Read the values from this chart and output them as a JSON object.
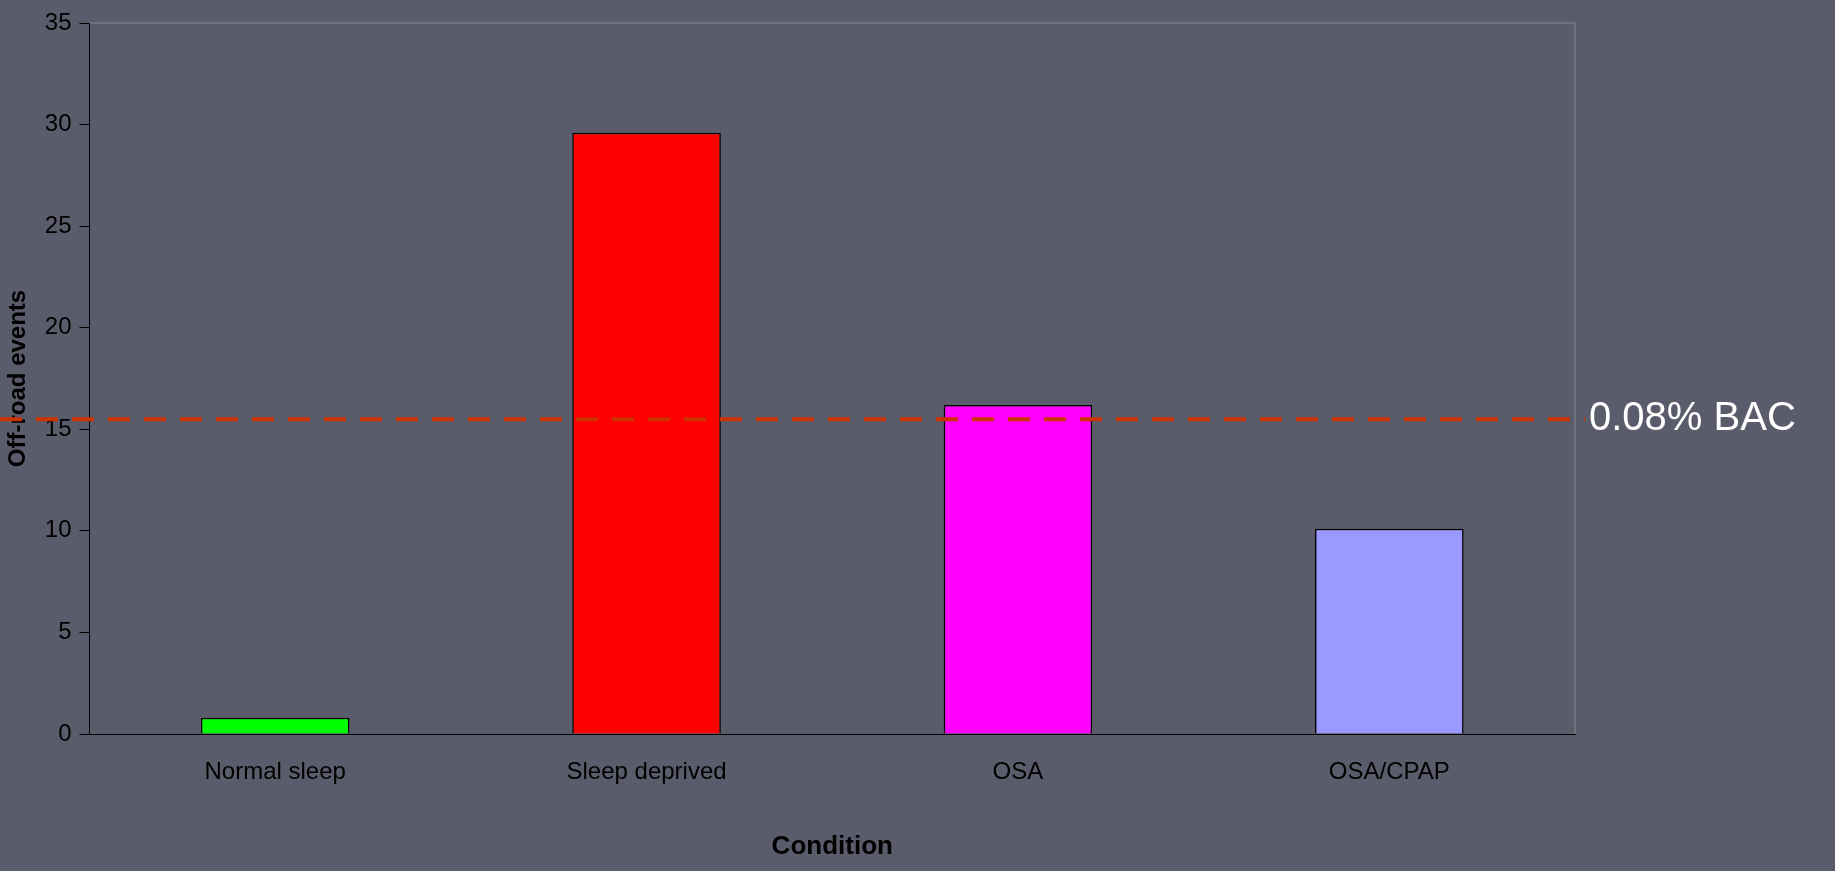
{
  "chart_data": {
    "type": "bar",
    "xlabel": "Condition",
    "ylabel": "Off-road events",
    "categories": [
      "Normal sleep",
      "Sleep deprived",
      "OSA",
      "OSA/CPAP"
    ],
    "values": [
      0.8,
      29.6,
      16.2,
      10.1
    ],
    "colors": [
      "#00ff00",
      "#ff0000",
      "#ff00ff",
      "#9999ff"
    ],
    "ylim": [
      0,
      35
    ],
    "yticks": [
      0,
      5,
      10,
      15,
      20,
      25,
      30,
      35
    ],
    "ref_lines": [
      {
        "axis": "y",
        "value": 15.5,
        "label": "0.08% BAC",
        "color": "#cc3300",
        "line_style": "dashed"
      }
    ],
    "grid": false,
    "legend": false
  }
}
